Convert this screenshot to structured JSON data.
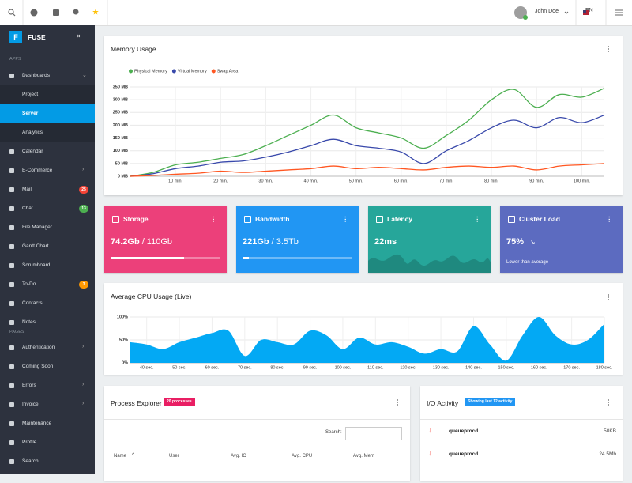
{
  "topbar": {
    "user": "John Doe",
    "language": "EN"
  },
  "sidebar": {
    "logo": "F",
    "brand": "FUSE",
    "sections": [
      {
        "title": "APPS",
        "items": [
          {
            "label": "Dashboards",
            "children": [
              "Project",
              "Server",
              "Analytics"
            ],
            "active_child": 1
          },
          {
            "label": "Calendar"
          },
          {
            "label": "E-Commerce",
            "submenu": true
          },
          {
            "label": "Mail",
            "badge": "25",
            "badge_color": "#f44336"
          },
          {
            "label": "Chat",
            "badge": "13",
            "badge_color": "#4caf50"
          },
          {
            "label": "File Manager"
          },
          {
            "label": "Gantt Chart"
          },
          {
            "label": "Scrumboard"
          },
          {
            "label": "To-Do",
            "badge": "3",
            "badge_color": "#ff9800"
          },
          {
            "label": "Contacts"
          },
          {
            "label": "Notes"
          }
        ]
      },
      {
        "title": "PAGES",
        "items": [
          {
            "label": "Authentication",
            "submenu": true
          },
          {
            "label": "Coming Soon"
          },
          {
            "label": "Errors",
            "submenu": true
          },
          {
            "label": "Invoice",
            "submenu": true
          },
          {
            "label": "Maintenance"
          },
          {
            "label": "Profile"
          },
          {
            "label": "Search"
          }
        ]
      }
    ]
  },
  "memory_chart": {
    "type": "line",
    "title": "Memory Usage",
    "x": [
      0,
      5,
      10,
      15,
      20,
      25,
      30,
      35,
      40,
      45,
      50,
      55,
      60,
      65,
      70,
      75,
      80,
      85,
      90,
      95,
      100,
      105
    ],
    "series": [
      {
        "name": "Physical Memory",
        "color": "#4caf50",
        "values": [
          0,
          15,
          45,
          55,
          70,
          85,
          120,
          160,
          200,
          240,
          190,
          170,
          150,
          110,
          160,
          220,
          300,
          340,
          270,
          320,
          310,
          345
        ]
      },
      {
        "name": "Virtual Memory",
        "color": "#3949ab",
        "values": [
          0,
          10,
          30,
          40,
          55,
          60,
          75,
          95,
          120,
          145,
          120,
          110,
          95,
          50,
          100,
          140,
          190,
          220,
          190,
          230,
          210,
          240
        ]
      },
      {
        "name": "Swap Area",
        "color": "#ff5722",
        "values": [
          0,
          3,
          8,
          12,
          20,
          15,
          20,
          25,
          30,
          40,
          30,
          35,
          30,
          25,
          35,
          40,
          35,
          40,
          25,
          40,
          45,
          50
        ]
      }
    ],
    "xlim": [
      0,
      105
    ],
    "xticks": [
      {
        "value": 10,
        "label": "10 min."
      },
      {
        "value": 20,
        "label": "20 min."
      },
      {
        "value": 30,
        "label": "30 min."
      },
      {
        "value": 40,
        "label": "40 min."
      },
      {
        "value": 50,
        "label": "50 min."
      },
      {
        "value": 60,
        "label": "60 min."
      },
      {
        "value": 70,
        "label": "70 min."
      },
      {
        "value": 80,
        "label": "80 min."
      },
      {
        "value": 90,
        "label": "90 min."
      },
      {
        "value": 100,
        "label": "100 min."
      }
    ],
    "ylim": [
      0,
      350
    ],
    "yticks": [
      {
        "value": 0,
        "label": "0 MB"
      },
      {
        "value": 50,
        "label": "50 MB"
      },
      {
        "value": 100,
        "label": "100 MB"
      },
      {
        "value": 150,
        "label": "150 MB"
      },
      {
        "value": 200,
        "label": "200 MB"
      },
      {
        "value": 250,
        "label": "250 MB"
      },
      {
        "value": 300,
        "label": "300 MB"
      },
      {
        "value": 350,
        "label": "350 MB"
      }
    ],
    "grid": true,
    "legend": "top-left"
  },
  "widgets": [
    {
      "title": "Storage",
      "value": "74.2Gb",
      "total": "/ 110Gb",
      "progress": 67,
      "color": "#ec407a"
    },
    {
      "title": "Bandwidth",
      "value": "221Gb",
      "total": "/ 3.5Tb",
      "progress": 6,
      "color": "#2196f3"
    },
    {
      "title": "Latency",
      "value": "22ms",
      "color": "#26a69a"
    },
    {
      "title": "Cluster Load",
      "value": "75%",
      "note": "Lower than average",
      "color": "#5c6bc0"
    }
  ],
  "cpu_chart": {
    "type": "area",
    "title": "Average CPU Usage (Live)",
    "color": "#03a9f4",
    "x": [
      35,
      40,
      45,
      50,
      55,
      60,
      65,
      70,
      75,
      80,
      85,
      90,
      95,
      100,
      105,
      110,
      115,
      120,
      125,
      130,
      135,
      140,
      145,
      150,
      155,
      160,
      165,
      170,
      175,
      180
    ],
    "values": [
      45,
      40,
      30,
      45,
      55,
      65,
      70,
      15,
      50,
      45,
      40,
      70,
      60,
      30,
      55,
      40,
      45,
      35,
      20,
      30,
      25,
      80,
      40,
      5,
      60,
      100,
      60,
      40,
      50,
      85
    ],
    "xlim": [
      35,
      180
    ],
    "xticks": [
      {
        "value": 40,
        "label": "40 sec."
      },
      {
        "value": 50,
        "label": "50 sec."
      },
      {
        "value": 60,
        "label": "60 sec."
      },
      {
        "value": 70,
        "label": "70 sec."
      },
      {
        "value": 80,
        "label": "80 sec."
      },
      {
        "value": 90,
        "label": "90 sec."
      },
      {
        "value": 100,
        "label": "100 sec."
      },
      {
        "value": 110,
        "label": "110 sec."
      },
      {
        "value": 120,
        "label": "120 sec."
      },
      {
        "value": 130,
        "label": "130 sec."
      },
      {
        "value": 140,
        "label": "140 sec."
      },
      {
        "value": 150,
        "label": "150 sec."
      },
      {
        "value": 160,
        "label": "160 sec."
      },
      {
        "value": 170,
        "label": "170 sec."
      },
      {
        "value": 180,
        "label": "180 sec."
      }
    ],
    "ylim": [
      0,
      100
    ],
    "yticks": [
      {
        "value": 0,
        "label": "0%"
      },
      {
        "value": 50,
        "label": "50%"
      },
      {
        "value": 100,
        "label": "100%"
      }
    ],
    "grid": true
  },
  "process_explorer": {
    "title": "Process Explorer",
    "badge": "20 processes",
    "search_label": "Search:",
    "columns": [
      "Name",
      "User",
      "Avg. IO",
      "Avg. CPU",
      "Avg. Mem"
    ]
  },
  "io_activity": {
    "title": "I/O Activity",
    "badge": "Showing last 12 activity",
    "rows": [
      [
        "queueprocd",
        "50KB"
      ],
      [
        "queueprocd",
        "24.5Mb"
      ]
    ]
  }
}
